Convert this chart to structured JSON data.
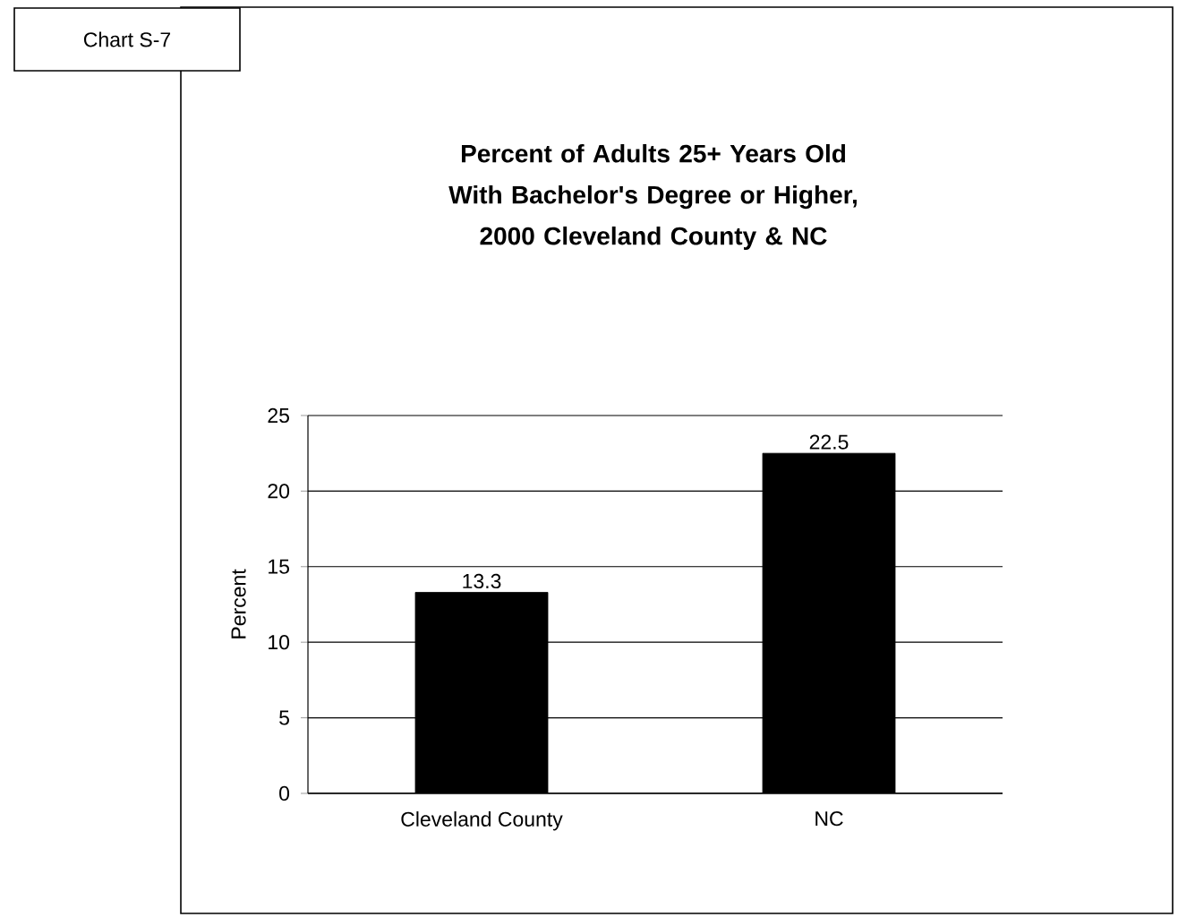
{
  "chart_data": {
    "type": "bar",
    "title": "Percent of Adults 25+ Years Old With Bachelor's Degree or Higher, 2000 Cleveland County & NC",
    "annotations": [
      "Chart S-7"
    ],
    "ylabel": "Percent",
    "categories": [
      "Cleveland County",
      "NC"
    ],
    "values": [
      13.3,
      22.5
    ],
    "color": "#000000",
    "ylim": [
      0,
      25
    ],
    "yticks": [
      0,
      5,
      10,
      15,
      20,
      25
    ],
    "grid": "y",
    "data_labels": true
  }
}
